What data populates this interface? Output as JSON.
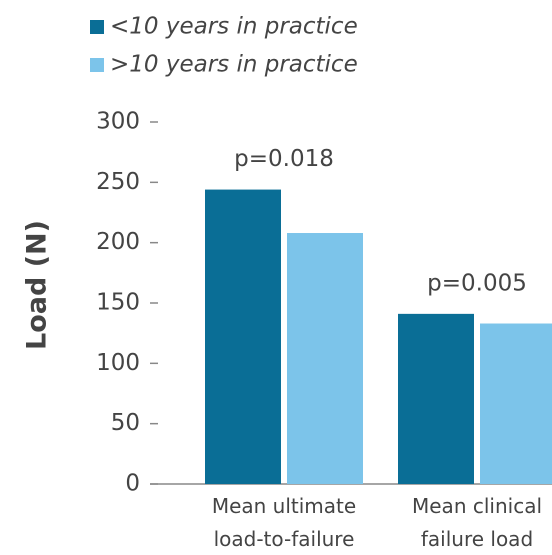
{
  "chart_data": {
    "type": "bar",
    "categories": [
      [
        "Mean ultimate",
        "load-to-failure"
      ],
      [
        "Mean clinical",
        "failure load"
      ]
    ],
    "series": [
      {
        "name": "<10 years in practice",
        "color": "#0a6e96",
        "values": [
          244,
          141
        ]
      },
      {
        "name": ">10 years in practice",
        "color": "#7cc4ea",
        "values": [
          208,
          133
        ]
      }
    ],
    "annotations": [
      "p=0.018",
      "p=0.005"
    ],
    "ylabel": "Load (N)",
    "ylim": [
      0,
      300
    ],
    "yticks": [
      0,
      50,
      100,
      150,
      200,
      250,
      300
    ]
  }
}
